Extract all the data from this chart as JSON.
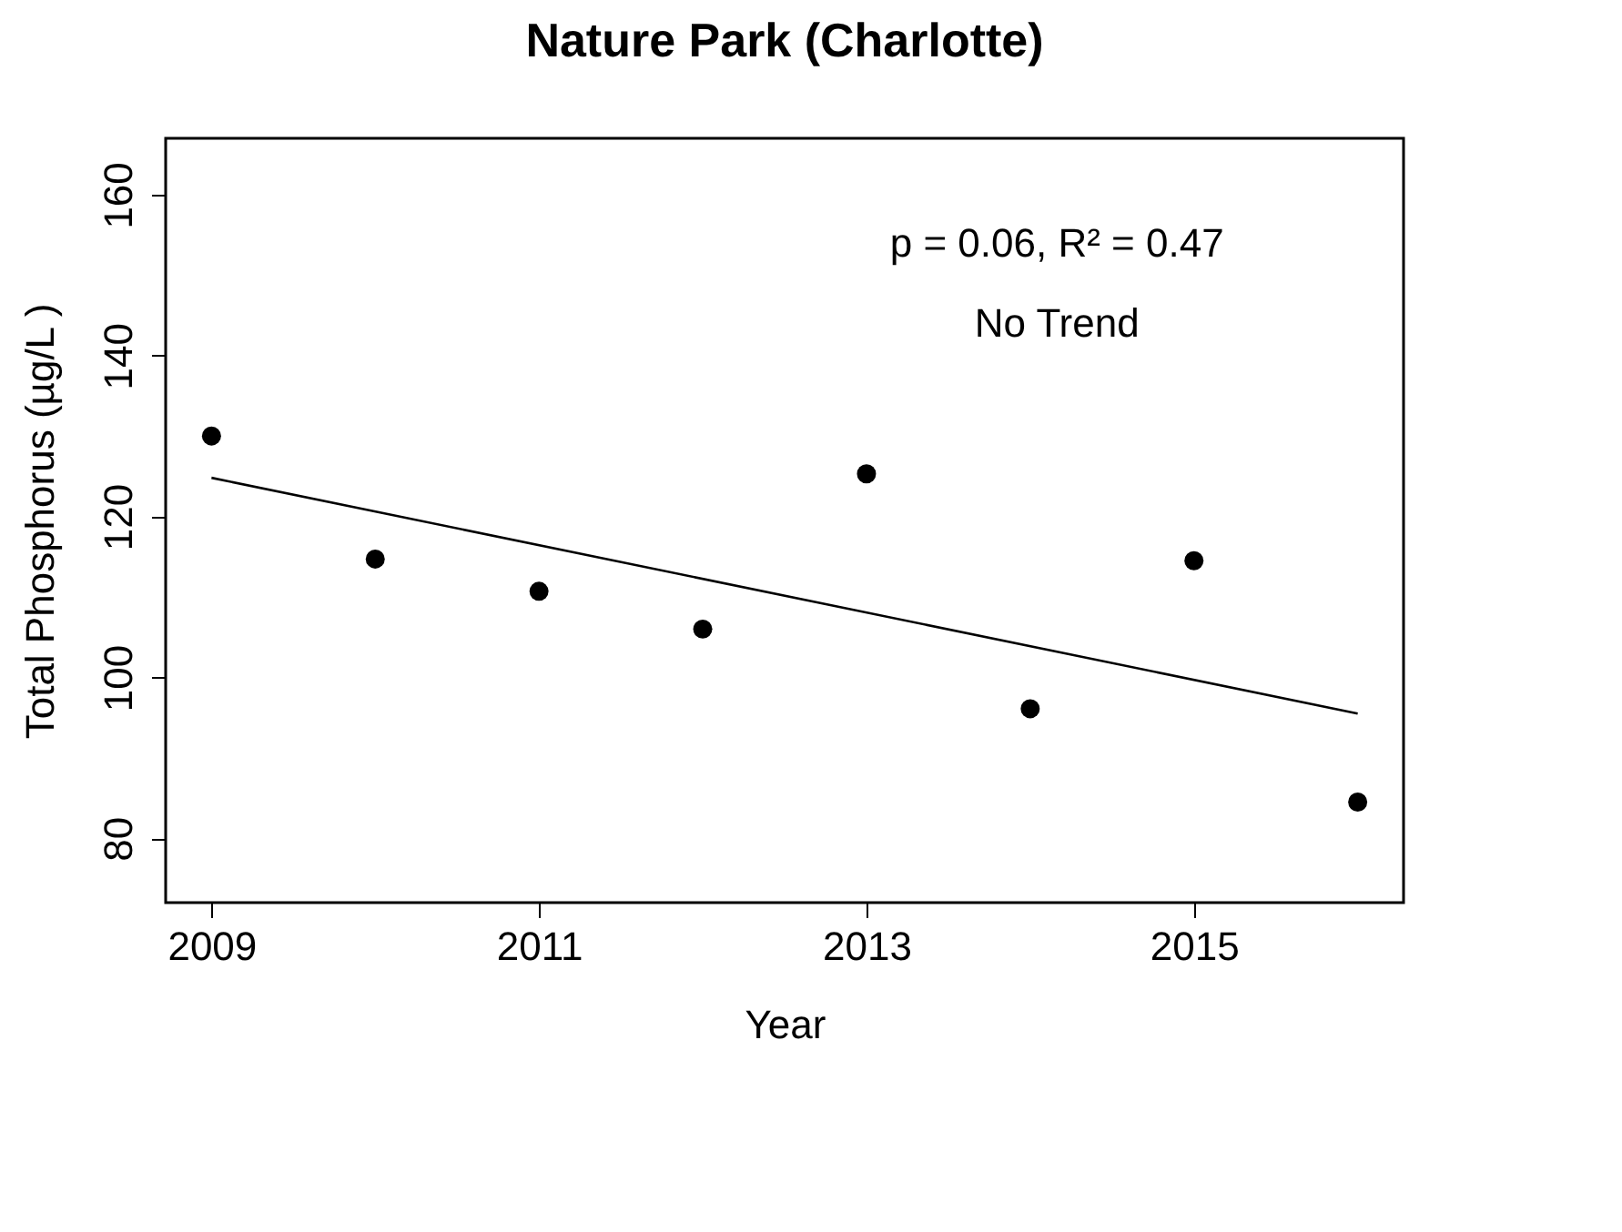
{
  "chart_data": {
    "type": "scatter",
    "title": "Nature Park (Charlotte)",
    "xlabel": "Year",
    "ylabel": "Total Phosphorus (µg/L )",
    "x": [
      2009,
      2010,
      2011,
      2012,
      2013,
      2014,
      2015,
      2016
    ],
    "series": [
      {
        "type": "scatter",
        "color": "#000000",
        "marker": "circle",
        "values": [
          130,
          114.7,
          110.7,
          106,
          125.3,
          96.1,
          114.5,
          84.5
        ]
      },
      {
        "type": "line",
        "color": "#000000",
        "line_style": "solid",
        "x": [
          2009,
          2016
        ],
        "values": [
          124.8,
          95.5
        ]
      }
    ],
    "annotations": [
      "p = 0.06, R² = 0.47",
      "No Trend"
    ],
    "xlim": [
      2008.72,
      2016.28
    ],
    "xticks": [
      2009,
      2011,
      2013,
      2015
    ],
    "ylim": [
      72,
      167
    ],
    "yticks": [
      80,
      100,
      120,
      140,
      160
    ],
    "grid": false
  }
}
